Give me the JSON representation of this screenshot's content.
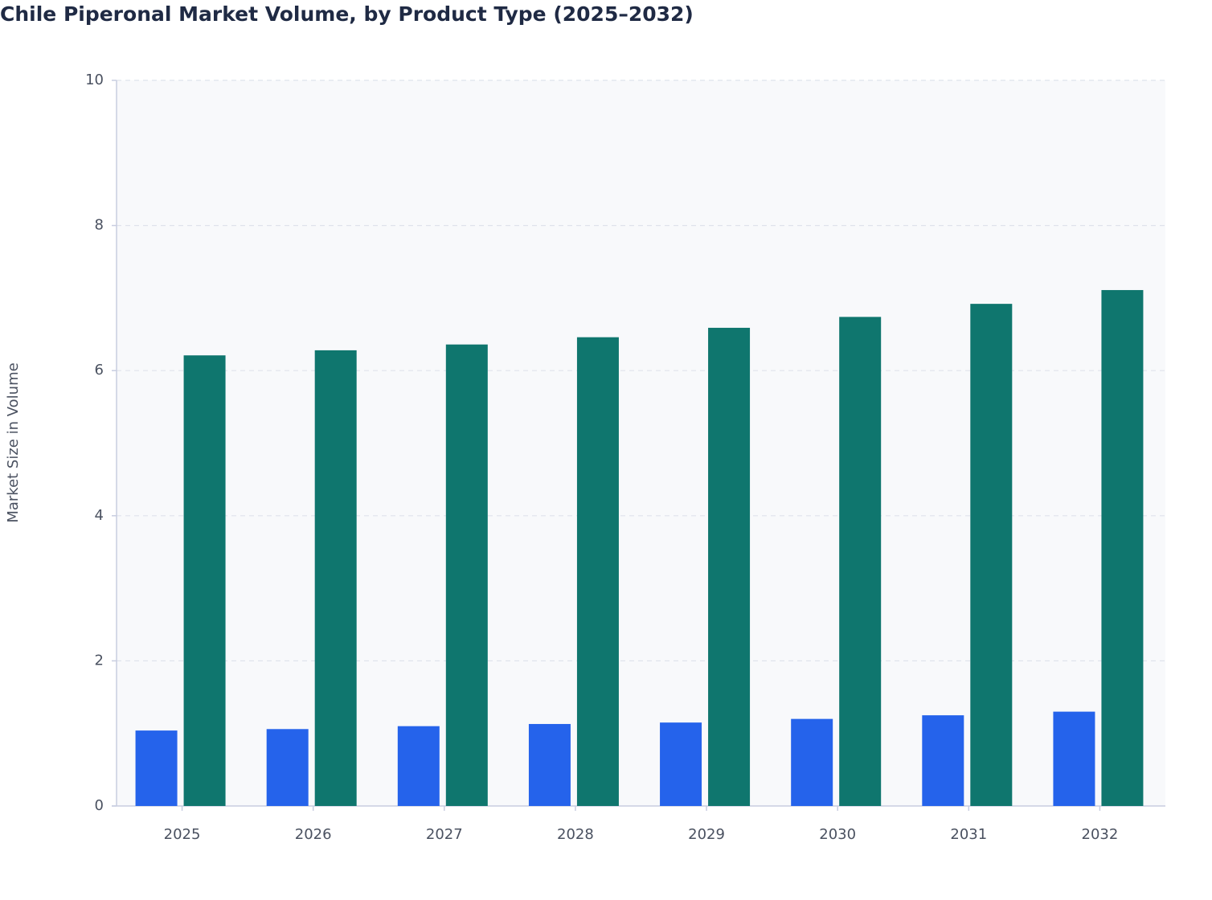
{
  "chart_data": {
    "type": "bar",
    "title": "Chile Piperonal Market Volume, by Product Type (2025–2032)",
    "y_label": "Market Size in Volume",
    "categories": [
      "2025",
      "2026",
      "2027",
      "2028",
      "2029",
      "2030",
      "2031",
      "2032"
    ],
    "series": [
      {
        "color": "#2563eb",
        "values": [
          1.04,
          1.06,
          1.1,
          1.13,
          1.15,
          1.2,
          1.25,
          1.3
        ]
      },
      {
        "color": "#0f766e",
        "values": [
          6.21,
          6.28,
          6.36,
          6.46,
          6.59,
          6.74,
          6.92,
          7.11
        ]
      }
    ],
    "ylim": [
      0,
      10
    ],
    "yticks": [
      0,
      2,
      4,
      6,
      8,
      10
    ],
    "grid": true
  }
}
